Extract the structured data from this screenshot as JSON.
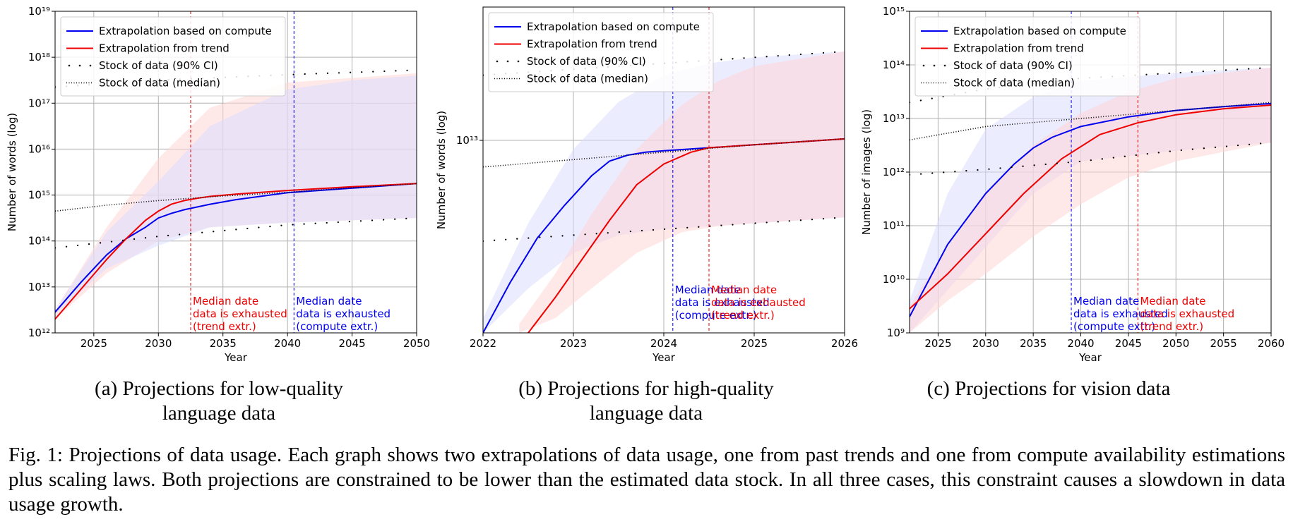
{
  "figure": {
    "caption_label": "Fig. 1:",
    "caption_text": "Projections of data usage. Each graph shows two extrapolations of data usage, one from past trends and one from compute availability estimations plus scaling laws. Both projections are constrained to be lower than the estimated data stock. In all three cases, this constraint causes a slowdown in data usage growth."
  },
  "legend": {
    "items": [
      {
        "label": "Extrapolation based on compute",
        "style": "line",
        "color": "#0000ee"
      },
      {
        "label": "Extrapolation from trend",
        "style": "line",
        "color": "#ee0000"
      },
      {
        "label": "Stock of data (90% CI)",
        "style": "sparse-dots",
        "color": "#000000"
      },
      {
        "label": "Stock of data (median)",
        "style": "dense-dots",
        "color": "#000000"
      }
    ],
    "placement": "top-left"
  },
  "colors": {
    "compute": "#0000ee",
    "trend": "#ee0000",
    "stock": "#000000",
    "compute_band": "#dcdcff",
    "trend_band": "#ffd6d6",
    "grid": "#b0b0b0"
  },
  "chart_data": [
    {
      "id": "a",
      "type": "line",
      "subcaption": [
        "(a) Projections for low-quality",
        "language data"
      ],
      "xlabel": "Year",
      "ylabel": "Number of words (log)",
      "xlim": [
        2022,
        2050
      ],
      "xticks": [
        2025,
        2030,
        2035,
        2040,
        2045,
        2050
      ],
      "yscale": "log",
      "ylim_exp": [
        12,
        19
      ],
      "yticks_exp": [
        12,
        13,
        14,
        15,
        16,
        17,
        18,
        19
      ],
      "grid": true,
      "series": [
        {
          "name": "Extrapolation based on compute",
          "color": "#0000ee",
          "x": [
            2022,
            2024,
            2026,
            2027.5,
            2029,
            2030,
            2031,
            2032,
            2034,
            2036,
            2040,
            2045,
            2050
          ],
          "y_exp": [
            12.45,
            13.1,
            13.7,
            14.05,
            14.3,
            14.5,
            14.6,
            14.68,
            14.8,
            14.9,
            15.05,
            15.15,
            15.25
          ]
        },
        {
          "name": "Extrapolation from trend",
          "color": "#ee0000",
          "x": [
            2022,
            2024,
            2026,
            2027.5,
            2029,
            2030,
            2031,
            2032,
            2033,
            2034,
            2036,
            2040,
            2045,
            2050
          ],
          "y_exp": [
            12.3,
            12.95,
            13.6,
            14.05,
            14.45,
            14.65,
            14.8,
            14.88,
            14.93,
            14.97,
            15.02,
            15.1,
            15.18,
            15.25
          ]
        },
        {
          "name": "Stock of data (median)",
          "color": "#000000",
          "x": [
            2022,
            2026,
            2030,
            2035,
            2040,
            2045,
            2050
          ],
          "y_exp": [
            14.65,
            14.78,
            14.88,
            14.98,
            15.06,
            15.16,
            15.25
          ]
        },
        {
          "name": "Stock of data (90% CI) lower",
          "color": "#000000",
          "x": [
            2022,
            2030,
            2040,
            2050
          ],
          "y_exp": [
            13.85,
            14.1,
            14.35,
            14.5
          ]
        },
        {
          "name": "Stock of data (90% CI) upper",
          "color": "#000000",
          "x": [
            2022,
            2030,
            2040,
            2050
          ],
          "y_exp": [
            17.35,
            17.5,
            17.62,
            17.72
          ]
        }
      ],
      "bands": [
        {
          "color": "#ffd6d6",
          "x": [
            2022,
            2026,
            2030,
            2034,
            2040,
            2045,
            2050
          ],
          "low": [
            12.3,
            13.3,
            14.0,
            14.3,
            14.4,
            14.45,
            14.5
          ],
          "high": [
            12.5,
            14.3,
            15.8,
            16.9,
            17.45,
            17.55,
            17.65
          ]
        },
        {
          "color": "#dcdcff",
          "x": [
            2022,
            2026,
            2030,
            2034,
            2040,
            2045,
            2050
          ],
          "low": [
            12.4,
            13.4,
            13.9,
            14.3,
            14.4,
            14.45,
            14.5
          ],
          "high": [
            12.5,
            14.2,
            15.3,
            16.5,
            17.3,
            17.5,
            17.6
          ]
        }
      ],
      "vlines": [
        {
          "x": 2032.5,
          "color": "#ee0000",
          "lines": [
            "Median date",
            "data is exhausted",
            "(trend extr.)"
          ]
        },
        {
          "x": 2040.5,
          "color": "#0000ee",
          "lines": [
            "Median date",
            "data is exhausted",
            "(compute extr.)"
          ]
        }
      ]
    },
    {
      "id": "b",
      "type": "line",
      "subcaption": [
        "(b) Projections for high-quality",
        "language data"
      ],
      "xlabel": "Year",
      "ylabel": "Number of words (log)",
      "xlim": [
        2022,
        2026
      ],
      "xticks": [
        2022,
        2023,
        2024,
        2025,
        2026
      ],
      "yscale": "log",
      "ylim_exp": [
        12.35,
        13.45
      ],
      "yticks_exp": [
        13
      ],
      "grid": true,
      "series": [
        {
          "name": "Extrapolation based on compute",
          "color": "#0000ee",
          "x": [
            2022,
            2022.3,
            2022.6,
            2022.9,
            2023.2,
            2023.4,
            2023.6,
            2023.8,
            2024.0,
            2024.5,
            2025.0,
            2025.5,
            2026
          ],
          "y_exp": [
            12.35,
            12.52,
            12.67,
            12.78,
            12.88,
            12.93,
            12.95,
            12.96,
            12.965,
            12.975,
            12.985,
            12.995,
            13.005
          ]
        },
        {
          "name": "Extrapolation from trend",
          "color": "#ee0000",
          "x": [
            2022.5,
            2022.8,
            2023.1,
            2023.4,
            2023.7,
            2024.0,
            2024.3,
            2024.5,
            2025.0,
            2025.5,
            2026
          ],
          "y_exp": [
            12.35,
            12.47,
            12.6,
            12.73,
            12.85,
            12.92,
            12.96,
            12.975,
            12.985,
            12.995,
            13.005
          ]
        },
        {
          "name": "Stock of data (median)",
          "color": "#000000",
          "x": [
            2022,
            2023,
            2024,
            2025,
            2026
          ],
          "y_exp": [
            12.91,
            12.935,
            12.96,
            12.985,
            13.005
          ]
        },
        {
          "name": "Stock of data (90% CI) lower",
          "color": "#000000",
          "x": [
            2022,
            2023,
            2024,
            2025,
            2026
          ],
          "y_exp": [
            12.66,
            12.68,
            12.7,
            12.72,
            12.74
          ]
        },
        {
          "name": "Stock of data (90% CI) upper",
          "color": "#000000",
          "x": [
            2022,
            2023,
            2024,
            2025,
            2026
          ],
          "y_exp": [
            13.22,
            13.24,
            13.26,
            13.28,
            13.3
          ]
        }
      ],
      "bands": [
        {
          "color": "#dcdcff",
          "x": [
            2022,
            2022.5,
            2023,
            2023.5,
            2024,
            2024.5,
            2025,
            2026
          ],
          "low": [
            12.35,
            12.5,
            12.62,
            12.68,
            12.7,
            12.71,
            12.72,
            12.74
          ],
          "high": [
            12.4,
            12.72,
            12.97,
            13.13,
            13.22,
            13.26,
            13.28,
            13.3
          ]
        },
        {
          "color": "#ffd6d6",
          "x": [
            2022.4,
            2022.8,
            2023.2,
            2023.7,
            2024.2,
            2024.6,
            2025,
            2026
          ],
          "low": [
            12.35,
            12.4,
            12.5,
            12.62,
            12.69,
            12.71,
            12.72,
            12.74
          ],
          "high": [
            12.38,
            12.55,
            12.75,
            12.97,
            13.12,
            13.2,
            13.25,
            13.3
          ]
        }
      ],
      "vlines": [
        {
          "x": 2024.1,
          "color": "#0000ee",
          "lines": [
            "Median date",
            "data is exhausted",
            "(compute extr.)"
          ]
        },
        {
          "x": 2024.5,
          "color": "#ee0000",
          "lines": [
            "Median date",
            "data is exhausted",
            "(trend extr.)"
          ]
        }
      ]
    },
    {
      "id": "c",
      "type": "line",
      "subcaption": [
        "(c) Projections for vision data",
        ""
      ],
      "xlabel": "Year",
      "ylabel": "Number of images (log)",
      "xlim": [
        2022,
        2060
      ],
      "xticks": [
        2025,
        2030,
        2035,
        2040,
        2045,
        2050,
        2055,
        2060
      ],
      "yscale": "log",
      "ylim_exp": [
        9,
        15
      ],
      "yticks_exp": [
        9,
        10,
        11,
        12,
        13,
        14,
        15
      ],
      "grid": true,
      "series": [
        {
          "name": "Extrapolation based on compute",
          "color": "#0000ee",
          "x": [
            2022,
            2026,
            2030,
            2033,
            2035,
            2037,
            2040,
            2045,
            2050,
            2055,
            2060
          ],
          "y_exp": [
            9.3,
            10.65,
            11.6,
            12.15,
            12.45,
            12.65,
            12.85,
            13.03,
            13.15,
            13.22,
            13.28
          ]
        },
        {
          "name": "Extrapolation from trend",
          "color": "#ee0000",
          "x": [
            2022,
            2026,
            2030,
            2034,
            2038,
            2042,
            2046,
            2050,
            2055,
            2060
          ],
          "y_exp": [
            9.45,
            10.1,
            10.85,
            11.6,
            12.25,
            12.7,
            12.92,
            13.07,
            13.18,
            13.25
          ]
        },
        {
          "name": "Stock of data (median)",
          "color": "#000000",
          "x": [
            2022,
            2030,
            2040,
            2050,
            2060
          ],
          "y_exp": [
            12.6,
            12.85,
            13.0,
            13.15,
            13.3
          ]
        },
        {
          "name": "Stock of data (90% CI) lower",
          "color": "#000000",
          "x": [
            2022,
            2030,
            2040,
            2050,
            2060
          ],
          "y_exp": [
            11.95,
            12.05,
            12.2,
            12.4,
            12.55
          ]
        },
        {
          "name": "Stock of data (90% CI) upper",
          "color": "#000000",
          "x": [
            2022,
            2030,
            2040,
            2050,
            2060
          ],
          "y_exp": [
            13.3,
            13.55,
            13.75,
            13.85,
            13.95
          ]
        }
      ],
      "bands": [
        {
          "color": "#dcdcff",
          "x": [
            2022,
            2026,
            2030,
            2035,
            2040,
            2050,
            2060
          ],
          "low": [
            9.0,
            9.8,
            10.6,
            11.6,
            12.2,
            12.4,
            12.55
          ],
          "high": [
            9.6,
            11.6,
            12.8,
            13.4,
            13.7,
            13.85,
            13.95
          ]
        },
        {
          "color": "#ffd6d6",
          "x": [
            2022,
            2026,
            2030,
            2035,
            2040,
            2045,
            2050,
            2060
          ],
          "low": [
            9.0,
            9.6,
            10.1,
            10.8,
            11.4,
            11.9,
            12.2,
            12.55
          ],
          "high": [
            9.5,
            10.6,
            11.6,
            12.5,
            13.1,
            13.5,
            13.75,
            13.95
          ]
        }
      ],
      "vlines": [
        {
          "x": 2039,
          "color": "#0000ee",
          "lines": [
            "Median date",
            "data is exhausted",
            "(compute extr.)"
          ]
        },
        {
          "x": 2046,
          "color": "#ee0000",
          "lines": [
            "Median date",
            "data is exhausted",
            "(trend extr.)"
          ]
        }
      ]
    }
  ]
}
